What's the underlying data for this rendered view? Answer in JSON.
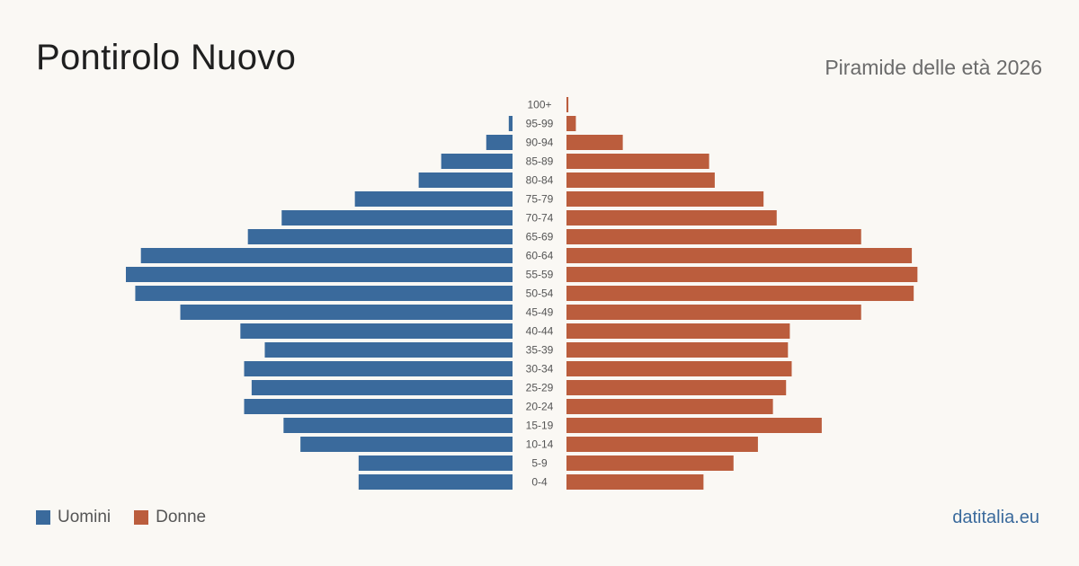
{
  "header": {
    "title": "Pontirolo Nuovo",
    "subtitle": "Piramide delle età 2026"
  },
  "legend": {
    "men_label": "Uomini",
    "women_label": "Donne"
  },
  "source": "datitalia.eu",
  "colors": {
    "men": "#3a6a9c",
    "women": "#bb5d3d",
    "background": "#faf8f4",
    "age_label": "#555555"
  },
  "chart_data": {
    "type": "bar",
    "orientation": "horizontal-pyramid",
    "categories": [
      "100+",
      "95-99",
      "90-94",
      "85-89",
      "80-84",
      "75-79",
      "70-74",
      "65-69",
      "60-64",
      "55-59",
      "50-54",
      "45-49",
      "40-44",
      "35-39",
      "30-34",
      "25-29",
      "20-24",
      "15-19",
      "10-14",
      "5-9",
      "0-4"
    ],
    "series": [
      {
        "name": "Uomini",
        "values": [
          0,
          2,
          14,
          38,
          50,
          84,
          123,
          141,
          198,
          206,
          201,
          177,
          145,
          132,
          143,
          139,
          143,
          122,
          113,
          82,
          82
        ]
      },
      {
        "name": "Donne",
        "values": [
          1,
          5,
          30,
          76,
          79,
          105,
          112,
          157,
          184,
          187,
          185,
          157,
          119,
          118,
          120,
          117,
          110,
          136,
          102,
          89,
          73
        ]
      }
    ]
  }
}
